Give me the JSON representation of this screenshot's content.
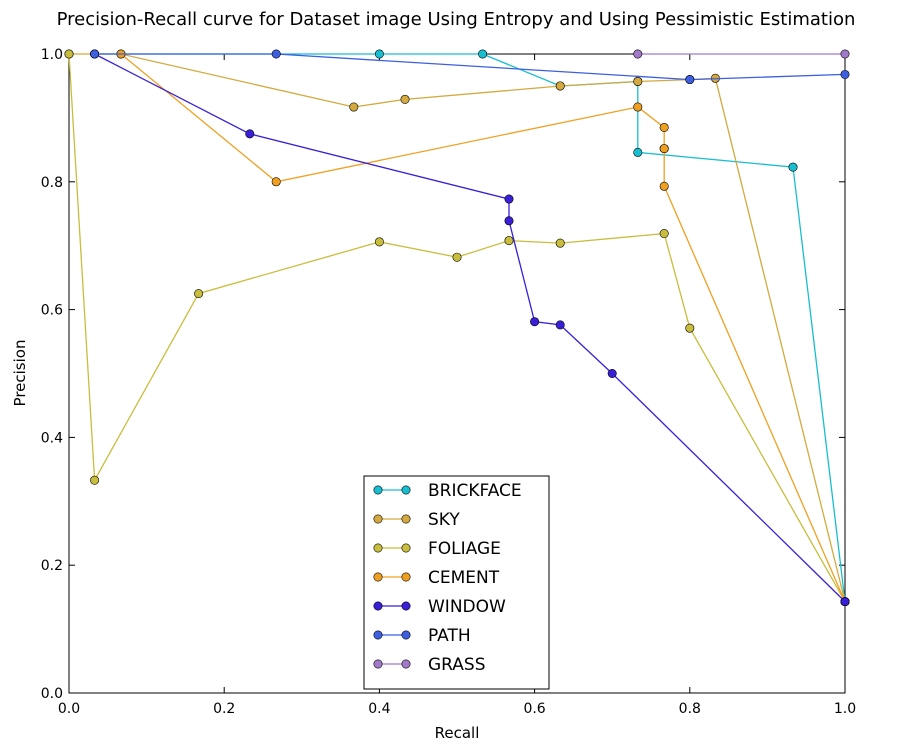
{
  "chart_data": {
    "type": "line",
    "title": "Precision-Recall curve for Dataset image Using Entropy and Using Pessimistic Estimation",
    "xlabel": "Recall",
    "ylabel": "Precision",
    "xlim": [
      0.0,
      1.0
    ],
    "ylim": [
      0.0,
      1.0
    ],
    "xticks": [
      "0.0",
      "0.2",
      "0.4",
      "0.6",
      "0.8",
      "1.0"
    ],
    "yticks": [
      "0.0",
      "0.2",
      "0.4",
      "0.6",
      "0.8",
      "1.0"
    ],
    "grid": false,
    "legend_position": "lower center",
    "series": [
      {
        "name": "BRICKFACE",
        "color": "#17becf",
        "points": [
          [
            0.033,
            1.0
          ],
          [
            0.4,
            1.0
          ],
          [
            0.533,
            1.0
          ],
          [
            0.633,
            0.95
          ],
          [
            0.733,
            0.957
          ],
          [
            0.733,
            0.846
          ],
          [
            0.933,
            0.823
          ],
          [
            1.0,
            0.143
          ]
        ]
      },
      {
        "name": "SKY",
        "color": "#d4a93f",
        "points": [
          [
            0.0,
            1.0
          ],
          [
            0.033,
            1.0
          ],
          [
            0.067,
            1.0
          ],
          [
            0.367,
            0.917
          ],
          [
            0.433,
            0.929
          ],
          [
            0.633,
            0.95
          ],
          [
            0.733,
            0.957
          ],
          [
            0.8,
            0.96
          ],
          [
            0.833,
            0.962
          ],
          [
            1.0,
            0.143
          ]
        ]
      },
      {
        "name": "FOLIAGE",
        "color": "#c9bd3e",
        "points": [
          [
            0.0,
            1.0
          ],
          [
            0.033,
            0.333
          ],
          [
            0.167,
            0.625
          ],
          [
            0.4,
            0.706
          ],
          [
            0.5,
            0.682
          ],
          [
            0.567,
            0.708
          ],
          [
            0.633,
            0.704
          ],
          [
            0.767,
            0.719
          ],
          [
            0.8,
            0.571
          ],
          [
            1.0,
            0.143
          ]
        ]
      },
      {
        "name": "CEMENT",
        "color": "#f0a020",
        "points": [
          [
            0.067,
            1.0
          ],
          [
            0.267,
            0.8
          ],
          [
            0.733,
            0.917
          ],
          [
            0.767,
            0.885
          ],
          [
            0.767,
            0.852
          ],
          [
            0.767,
            0.852
          ],
          [
            0.767,
            0.793
          ],
          [
            1.0,
            0.143
          ]
        ]
      },
      {
        "name": "WINDOW",
        "color": "#3a1fd8",
        "points": [
          [
            0.033,
            1.0
          ],
          [
            0.233,
            0.875
          ],
          [
            0.567,
            0.773
          ],
          [
            0.567,
            0.739
          ],
          [
            0.6,
            0.581
          ],
          [
            0.633,
            0.576
          ],
          [
            0.7,
            0.5
          ],
          [
            1.0,
            0.143
          ]
        ]
      },
      {
        "name": "PATH",
        "color": "#3d5fe0",
        "points": [
          [
            0.033,
            1.0
          ],
          [
            0.267,
            1.0
          ],
          [
            0.8,
            0.96
          ],
          [
            1.0,
            0.968
          ]
        ]
      },
      {
        "name": "GRASS",
        "color": "#a07ac8",
        "points": [
          [
            0.733,
            1.0
          ],
          [
            1.0,
            1.0
          ]
        ]
      }
    ]
  }
}
